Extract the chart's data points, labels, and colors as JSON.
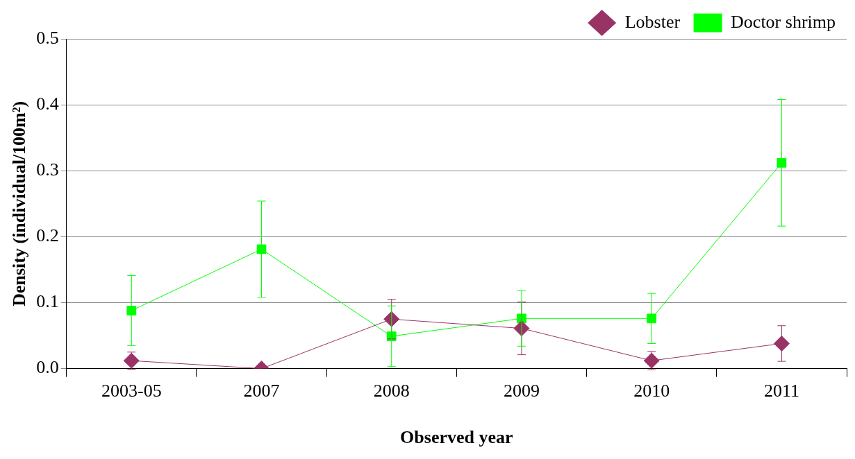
{
  "chart_data": {
    "type": "line",
    "xlabel": "Observed year",
    "ylabel": "Density (individual/100m²)",
    "categories": [
      "2003-05",
      "2007",
      "2008",
      "2009",
      "2010",
      "2011"
    ],
    "series": [
      {
        "name": "Lobster",
        "color": "#993366",
        "marker": "diamond",
        "values": [
          0.012,
          0.0,
          0.075,
          0.061,
          0.012,
          0.038
        ],
        "errors": [
          0.013,
          null,
          0.03,
          0.04,
          0.014,
          0.027
        ]
      },
      {
        "name": "Doctor shrimp",
        "color": "#00ff00",
        "marker": "square",
        "values": [
          0.088,
          0.181,
          0.049,
          0.076,
          0.076,
          0.312
        ],
        "errors": [
          0.053,
          0.073,
          0.046,
          0.042,
          0.038,
          0.096
        ]
      }
    ],
    "ylim": [
      0,
      0.5
    ],
    "yticks": [
      {
        "value": 0,
        "label": "0.0"
      },
      0.1,
      0.2,
      0.3,
      0.4,
      0.5
    ],
    "grid": "y",
    "legend": "top right"
  }
}
